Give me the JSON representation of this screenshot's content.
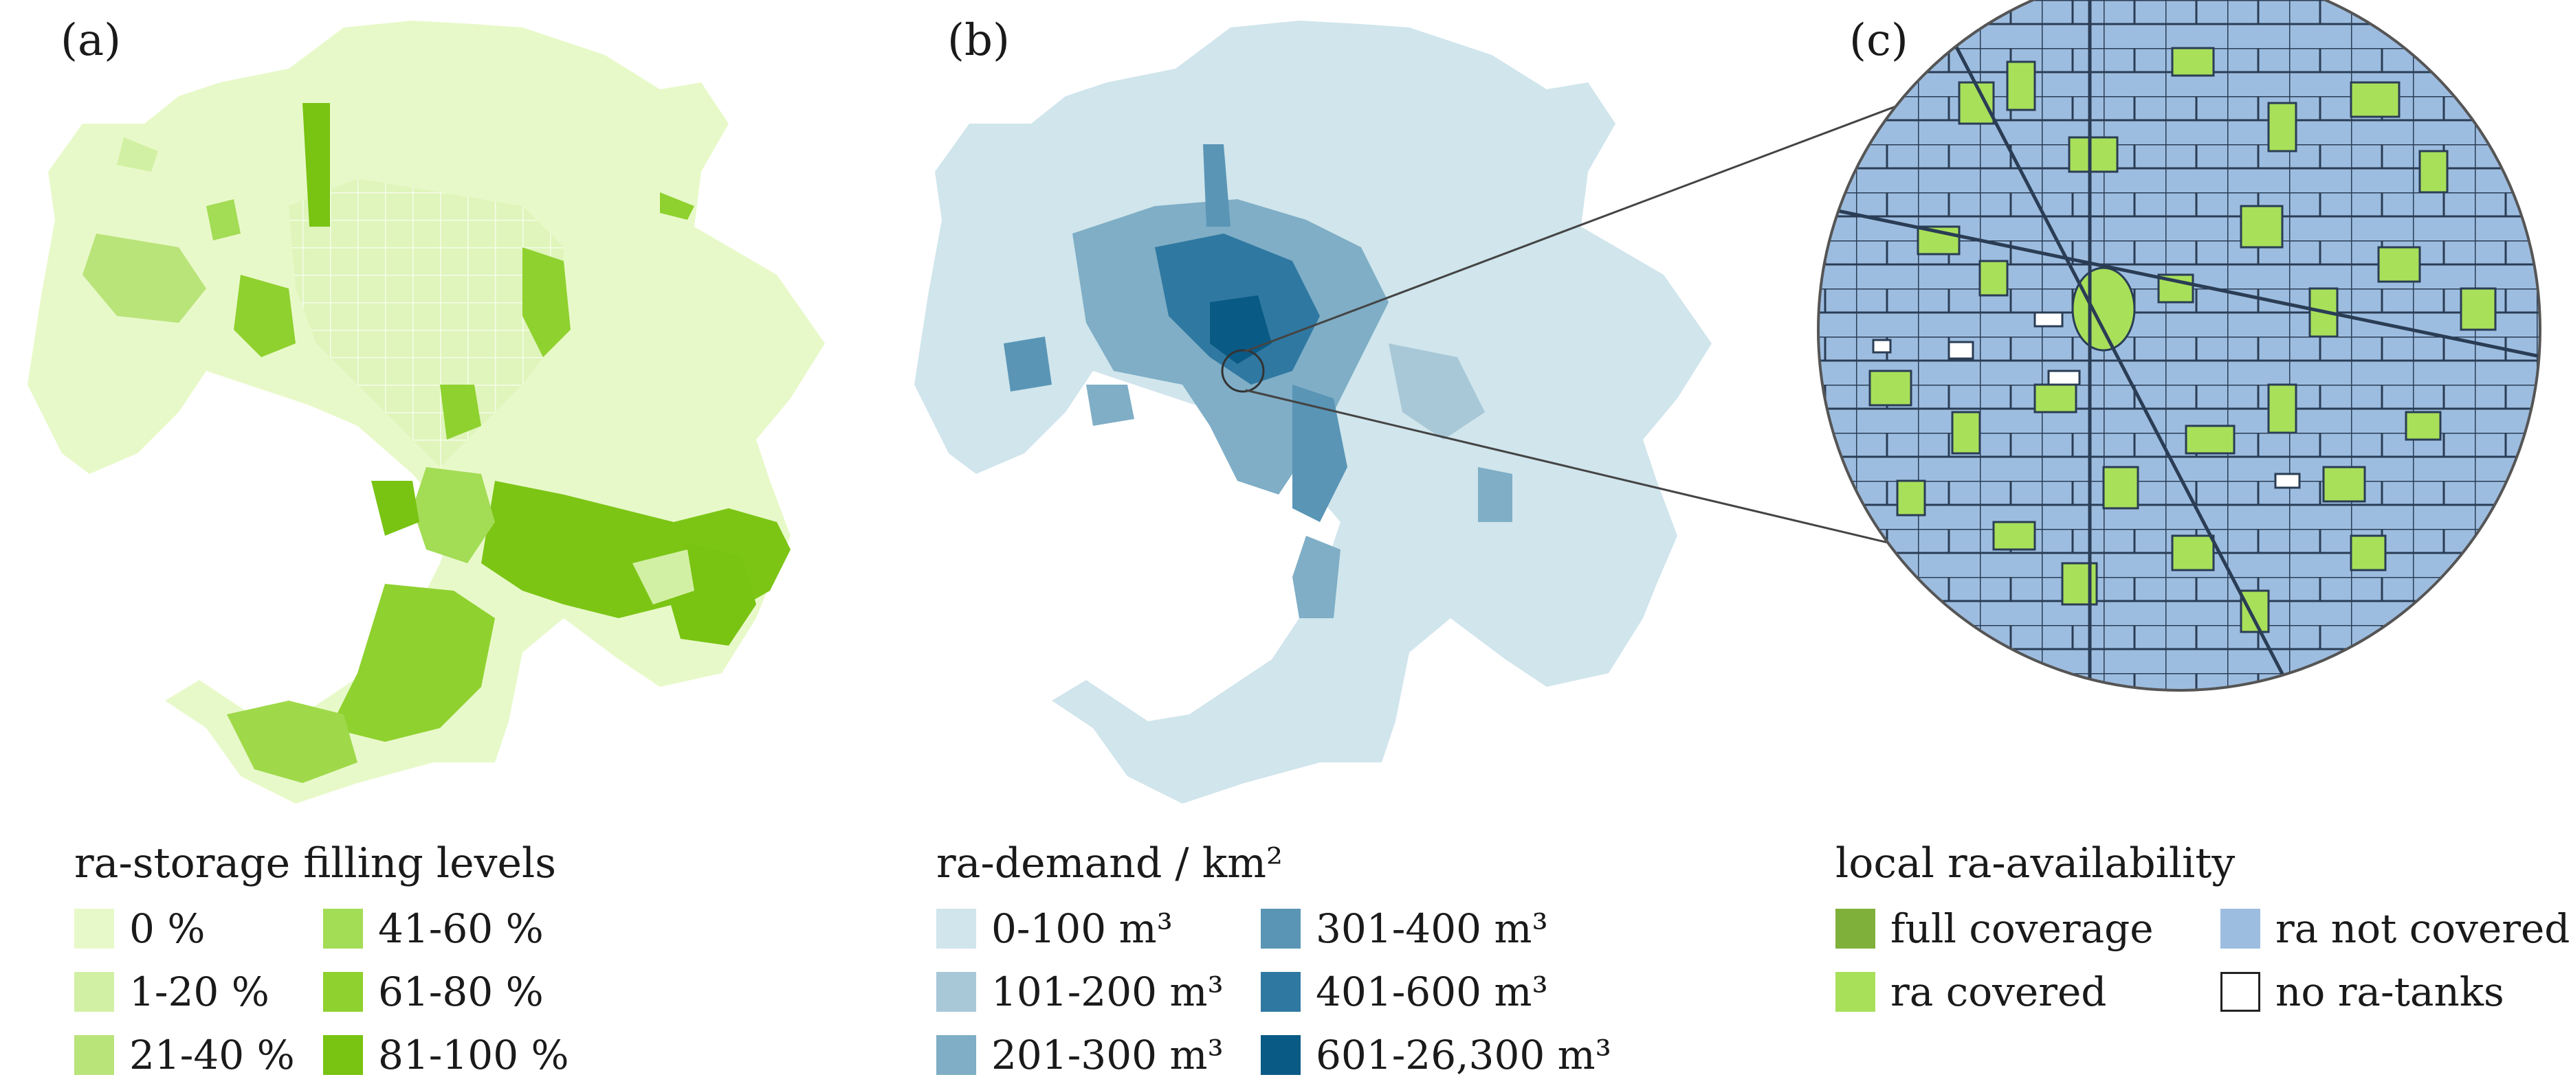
{
  "panels": {
    "a": {
      "label": "(a)",
      "legend_title": "ra-storage filling levels",
      "legend": [
        {
          "label": "0 %",
          "color": "#e8f9c9"
        },
        {
          "label": "1-20 %",
          "color": "#d2f0a3"
        },
        {
          "label": "21-40 %",
          "color": "#b9e47a"
        },
        {
          "label": "41-60 %",
          "color": "#a3dc55"
        },
        {
          "label": "61-80 %",
          "color": "#8fd12f"
        },
        {
          "label": "81-100 %",
          "color": "#79c312"
        }
      ]
    },
    "b": {
      "label": "(b)",
      "legend_title": "ra-demand / km²",
      "legend": [
        {
          "label": "0-100 m³",
          "color": "#d0e5ec"
        },
        {
          "label": "101-200 m³",
          "color": "#a8c8d8"
        },
        {
          "label": "201-300 m³",
          "color": "#7faec6"
        },
        {
          "label": "301-400 m³",
          "color": "#5a95b6"
        },
        {
          "label": "401-600 m³",
          "color": "#2f78a1"
        },
        {
          "label": "601-26,300 m³",
          "color": "#0a5a86"
        }
      ]
    },
    "c": {
      "label": "(c)",
      "legend_title": "local ra-availability",
      "legend": [
        {
          "label": "full coverage",
          "color": "#7fb03a"
        },
        {
          "label": "ra covered",
          "color": "#a8e05a"
        },
        {
          "label": "ra not covered",
          "color": "#9dbde0"
        },
        {
          "label": "no ra-tanks",
          "color": "#ffffff"
        }
      ]
    }
  }
}
